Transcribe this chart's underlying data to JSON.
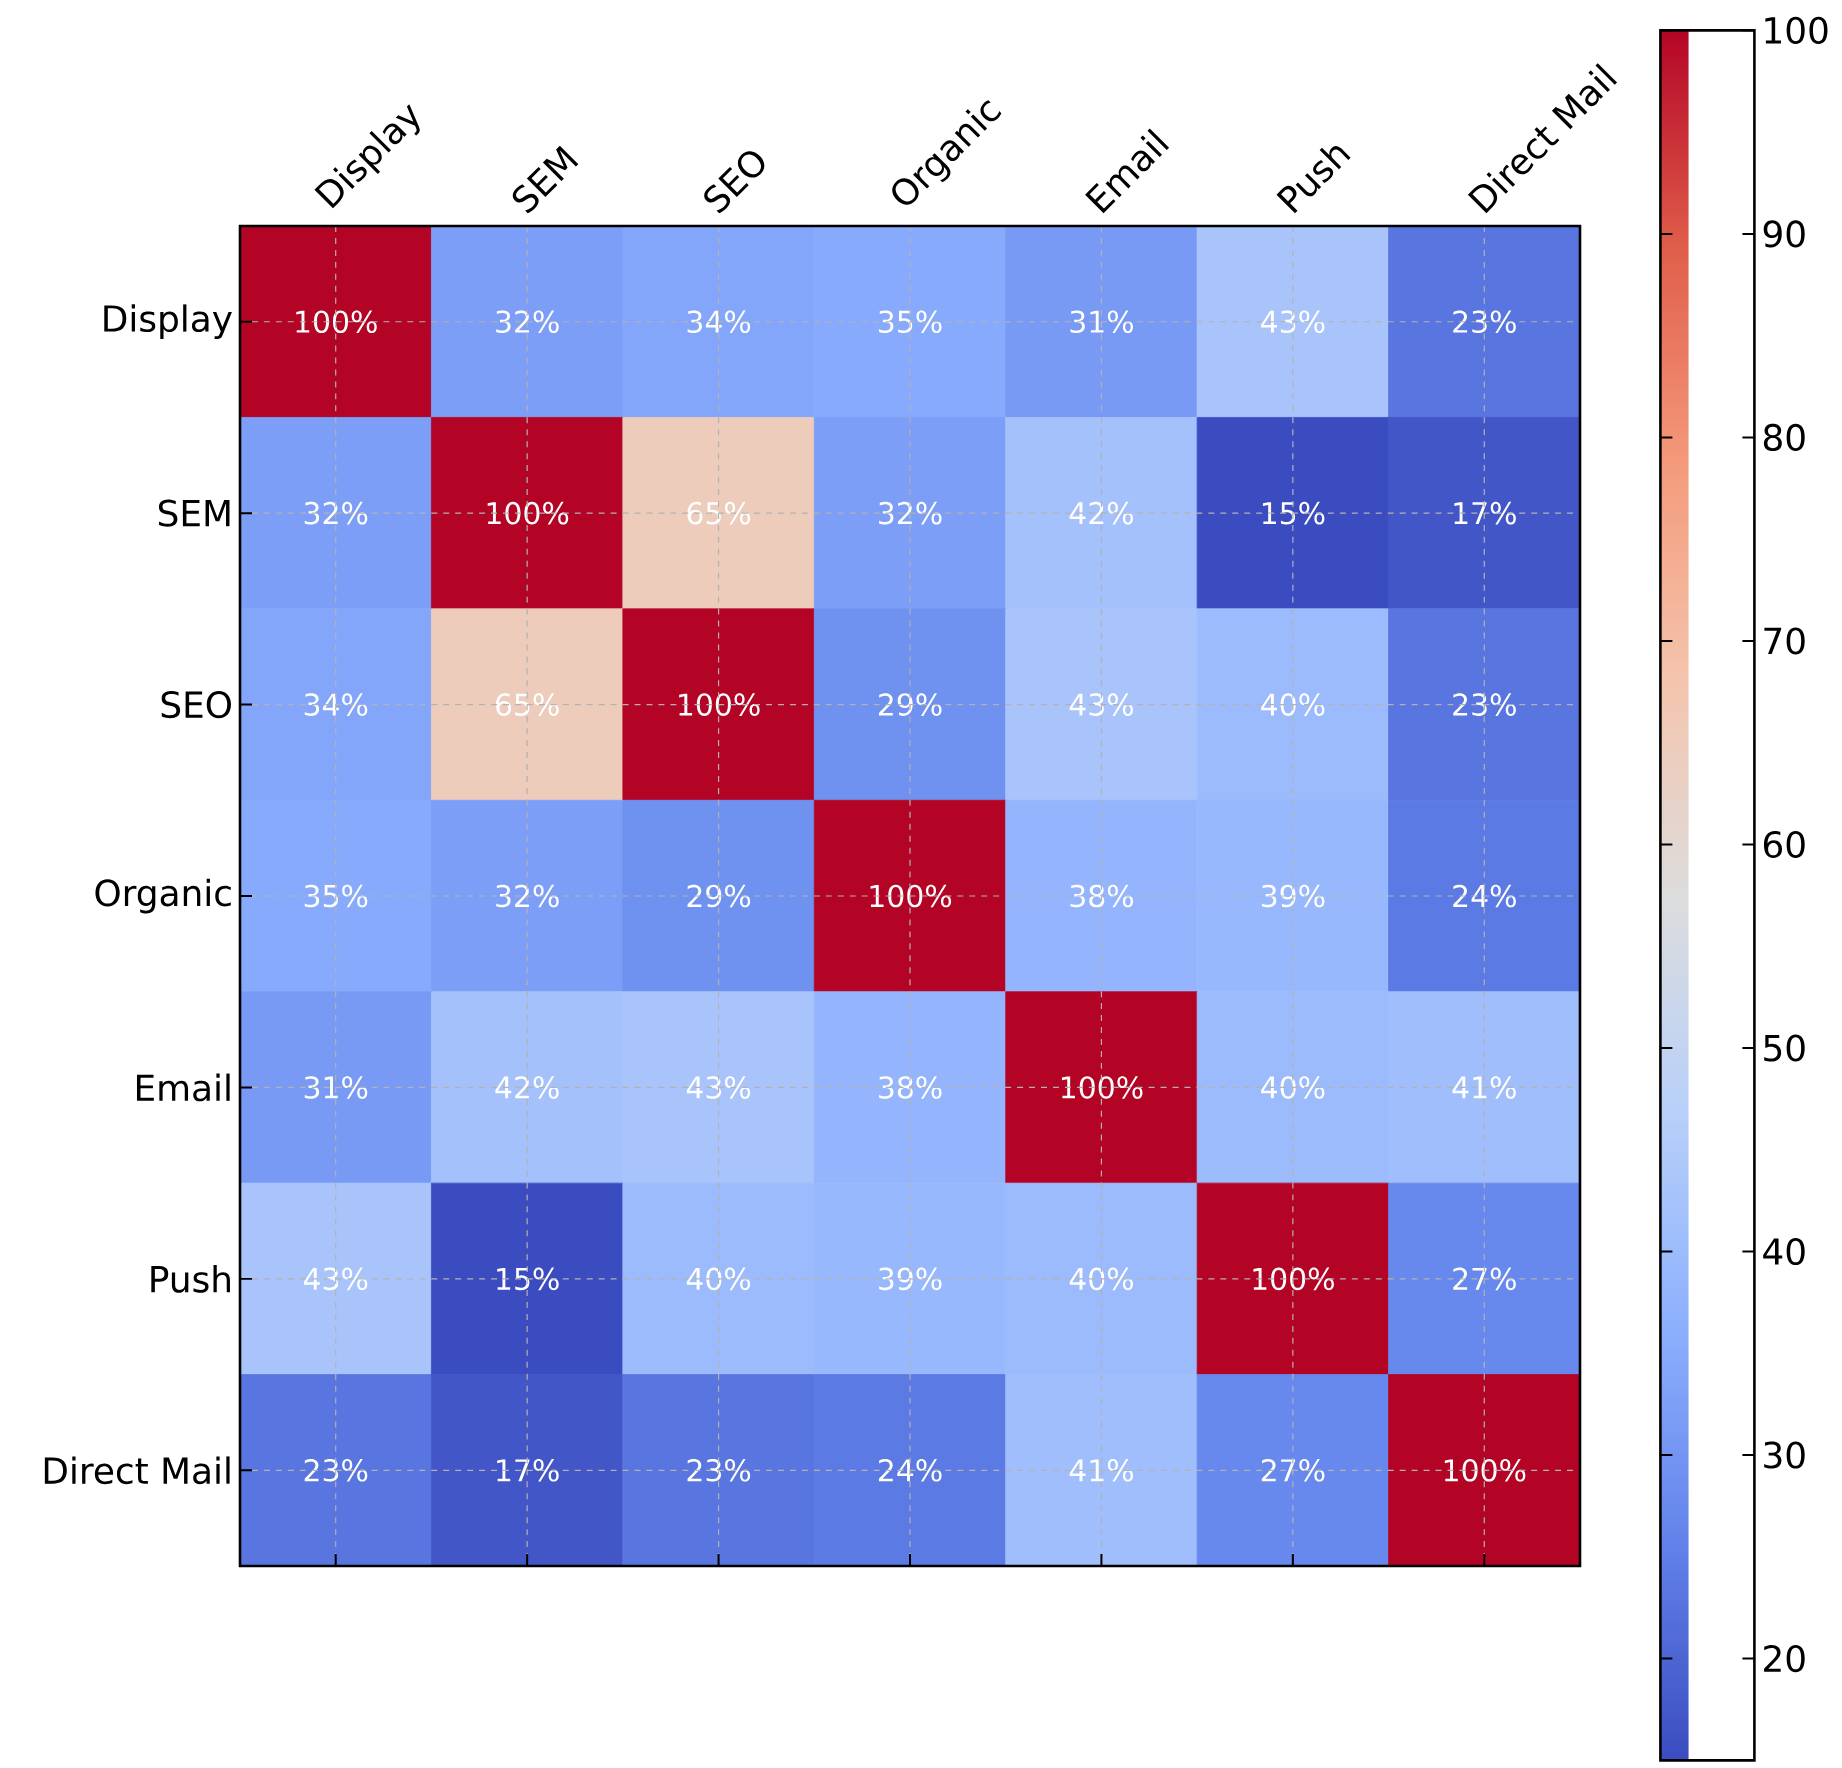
{
  "chart_data": {
    "type": "heatmap",
    "categories": [
      "Display",
      "SEM",
      "SEO",
      "Organic",
      "Email",
      "Push",
      "Direct Mail"
    ],
    "y_categories": [
      "Display",
      "SEM",
      "SEO",
      "Organic",
      "Email",
      "Push",
      "Direct Mail"
    ],
    "cells": [
      [
        100,
        32,
        34,
        35,
        31,
        43,
        23
      ],
      [
        32,
        100,
        65,
        32,
        42,
        15,
        17
      ],
      [
        34,
        65,
        100,
        29,
        43,
        40,
        23
      ],
      [
        35,
        32,
        29,
        100,
        38,
        39,
        24
      ],
      [
        31,
        42,
        43,
        38,
        100,
        40,
        41
      ],
      [
        43,
        15,
        40,
        39,
        40,
        100,
        27
      ],
      [
        23,
        17,
        23,
        24,
        41,
        27,
        100
      ]
    ],
    "cell_labels": [
      [
        "100%",
        "32%",
        "34%",
        "35%",
        "31%",
        "43%",
        "23%"
      ],
      [
        "32%",
        "100%",
        "65%",
        "32%",
        "42%",
        "15%",
        "17%"
      ],
      [
        "34%",
        "65%",
        "100%",
        "29%",
        "43%",
        "40%",
        "23%"
      ],
      [
        "35%",
        "32%",
        "29%",
        "100%",
        "38%",
        "39%",
        "24%"
      ],
      [
        "31%",
        "42%",
        "43%",
        "38%",
        "100%",
        "40%",
        "41%"
      ],
      [
        "43%",
        "15%",
        "40%",
        "39%",
        "40%",
        "100%",
        "27%"
      ],
      [
        "23%",
        "17%",
        "23%",
        "24%",
        "41%",
        "27%",
        "100%"
      ]
    ],
    "clim": [
      15,
      100
    ],
    "cticks": [
      20,
      30,
      40,
      50,
      60,
      70,
      80,
      90,
      100
    ],
    "grid": true
  }
}
